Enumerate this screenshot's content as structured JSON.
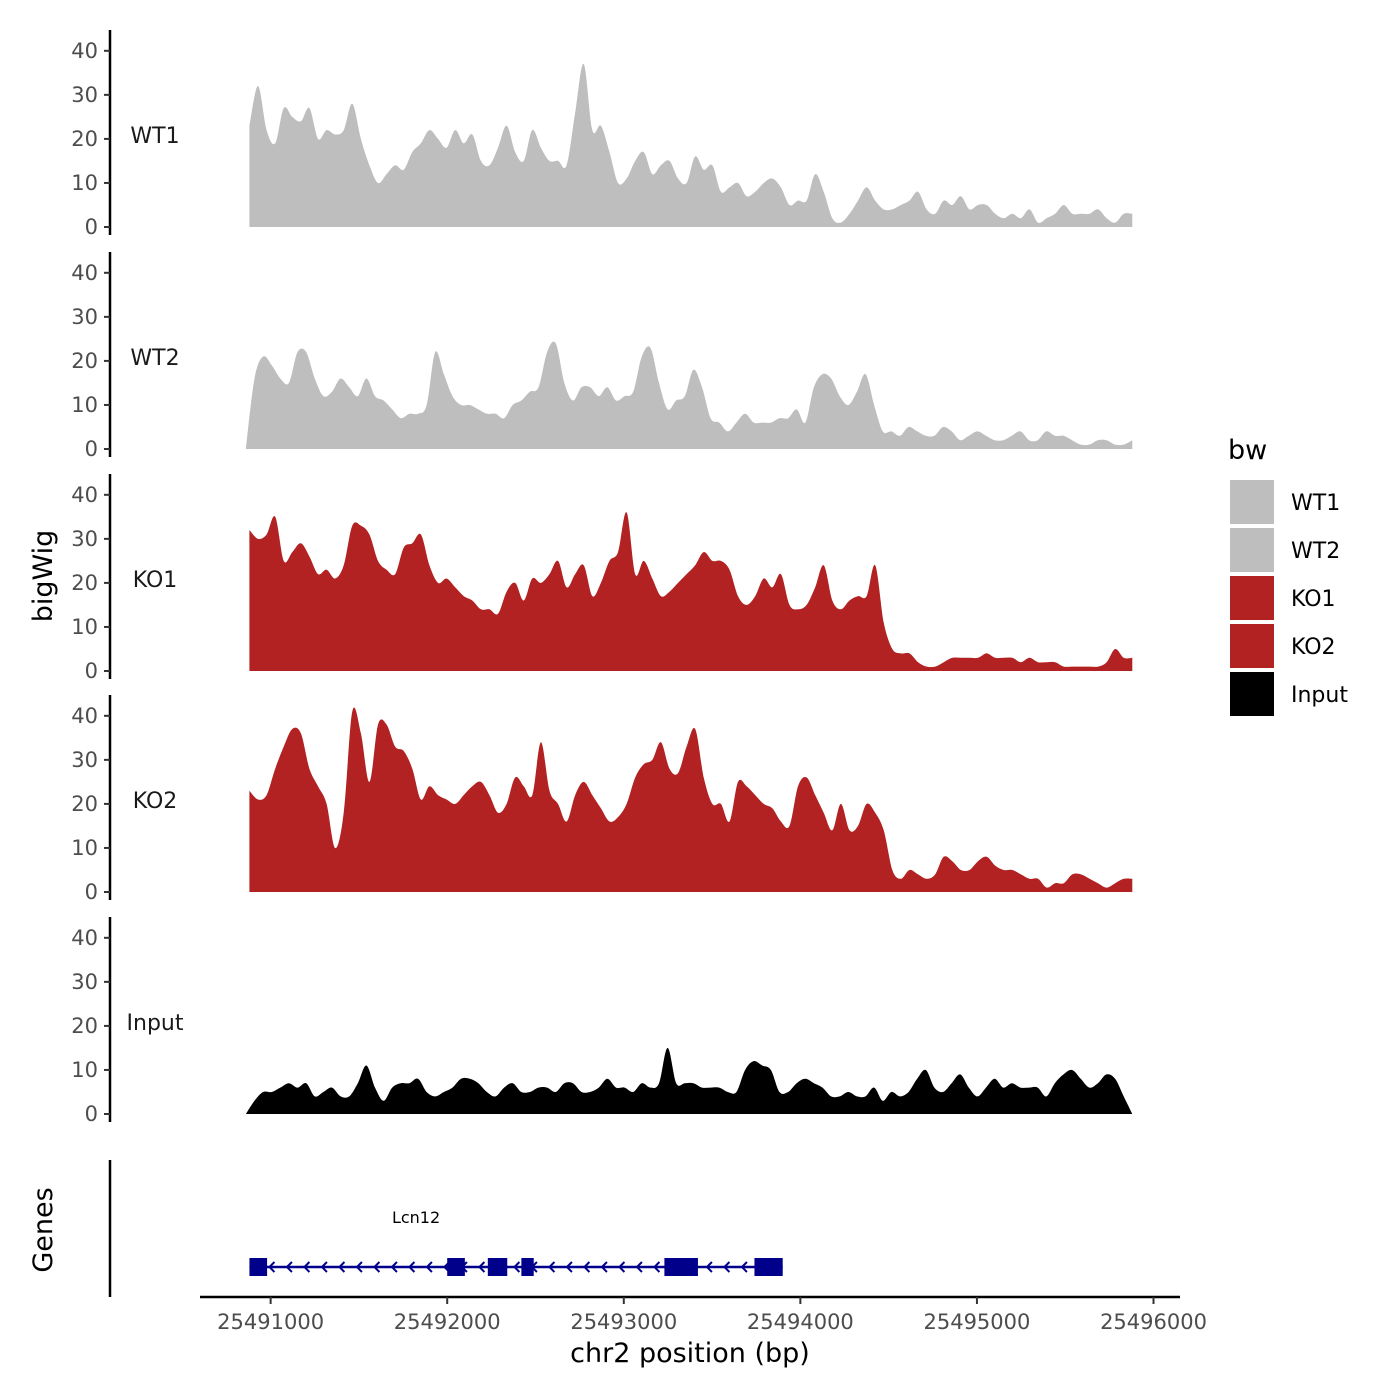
{
  "chart_data": {
    "type": "area",
    "title": "",
    "ylabel": "bigWig",
    "xlabel": "chr2 position (bp)",
    "genes_label": "Genes",
    "xlim": [
      25490600,
      25496150
    ],
    "ylim": [
      0,
      42
    ],
    "x_ticks": [
      25491000,
      25492000,
      25493000,
      25494000,
      25495000,
      25496000
    ],
    "x_tick_labels": [
      "25491000",
      "25492000",
      "25493000",
      "25494000",
      "25495000",
      "25496000"
    ],
    "y_ticks": [
      0,
      10,
      20,
      30,
      40
    ],
    "y_tick_labels": [
      "0",
      "10",
      "20",
      "30",
      "40"
    ],
    "legend": {
      "title": "bw",
      "position": "right",
      "items": [
        {
          "label": "WT1",
          "color": "#bebebe"
        },
        {
          "label": "WT2",
          "color": "#bebebe"
        },
        {
          "label": "KO1",
          "color": "#b22222"
        },
        {
          "label": "KO2",
          "color": "#b22222"
        },
        {
          "label": "Input",
          "color": "#000000"
        }
      ]
    },
    "series": [
      {
        "name": "WT1",
        "color": "#bebebe",
        "x_start": 25490880,
        "x_end": 25495880,
        "values": [
          23,
          32,
          22,
          19,
          27,
          25,
          24,
          27,
          20,
          22,
          21,
          22,
          28,
          20,
          14,
          10,
          12,
          14,
          13,
          17,
          19,
          22,
          20,
          18,
          22,
          19,
          21,
          15,
          14,
          18,
          23,
          17,
          15,
          22,
          18,
          15,
          15,
          14,
          26,
          37,
          22,
          23,
          17,
          10,
          11,
          15,
          17,
          12,
          14,
          15,
          11,
          10,
          16,
          13,
          14,
          8,
          9,
          10,
          7,
          8,
          10,
          11,
          9,
          5,
          6,
          6,
          12,
          8,
          2,
          1,
          3,
          6,
          9,
          6,
          4,
          4,
          5,
          6,
          8,
          4,
          3,
          6,
          5,
          7,
          4,
          5,
          5,
          3,
          2,
          3,
          2,
          4,
          1,
          2,
          3,
          5,
          3,
          3,
          3,
          4,
          2,
          1,
          3,
          3
        ]
      },
      {
        "name": "WT2",
        "color": "#bebebe",
        "x_start": 25490860,
        "x_end": 25495880,
        "values": [
          0,
          16,
          21,
          19,
          16,
          15,
          22,
          22,
          16,
          12,
          13,
          16,
          14,
          12,
          16,
          12,
          11,
          9,
          7,
          8,
          8,
          10,
          22,
          17,
          12,
          10,
          10,
          9,
          8,
          8,
          7,
          10,
          11,
          13,
          14,
          22,
          24,
          15,
          11,
          14,
          14,
          12,
          14,
          11,
          12,
          13,
          21,
          23,
          15,
          9,
          11,
          12,
          18,
          14,
          7,
          6,
          4,
          6,
          8,
          6,
          6,
          6,
          7,
          7,
          9,
          6,
          14,
          17,
          16,
          12,
          10,
          13,
          17,
          10,
          4,
          4,
          3,
          5,
          4,
          3,
          3,
          5,
          4,
          2,
          3,
          4,
          3,
          2,
          2,
          3,
          4,
          2,
          2,
          4,
          3,
          3,
          2,
          1,
          1,
          2,
          2,
          1,
          1,
          2
        ]
      },
      {
        "name": "KO1",
        "color": "#b22222",
        "x_start": 25490880,
        "x_end": 25495880,
        "values": [
          32,
          30,
          31,
          35,
          25,
          27,
          29,
          26,
          22,
          23,
          21,
          24,
          33,
          33,
          31,
          25,
          23,
          22,
          28,
          29,
          31,
          24,
          20,
          21,
          19,
          17,
          16,
          14,
          14,
          13,
          18,
          20,
          16,
          21,
          20,
          22,
          25,
          19,
          22,
          24,
          17,
          20,
          25,
          27,
          36,
          22,
          25,
          21,
          17,
          18,
          20,
          22,
          24,
          27,
          25,
          25,
          23,
          17,
          15,
          17,
          21,
          19,
          22,
          15,
          14,
          15,
          19,
          24,
          16,
          14,
          16,
          17,
          17,
          24,
          11,
          5,
          4,
          4,
          2,
          1,
          1,
          2,
          3,
          3,
          3,
          3,
          4,
          3,
          3,
          3,
          2,
          3,
          2,
          2,
          2,
          1,
          1,
          1,
          1,
          1,
          2,
          5,
          3,
          3
        ]
      },
      {
        "name": "KO2",
        "color": "#b22222",
        "x_start": 25490880,
        "x_end": 25495880,
        "values": [
          23,
          21,
          22,
          28,
          33,
          37,
          36,
          28,
          24,
          20,
          10,
          18,
          41,
          36,
          25,
          38,
          38,
          33,
          32,
          28,
          21,
          24,
          22,
          21,
          20,
          22,
          24,
          25,
          22,
          18,
          20,
          26,
          24,
          22,
          34,
          23,
          20,
          16,
          22,
          25,
          22,
          19,
          16,
          17,
          20,
          26,
          29,
          30,
          34,
          28,
          27,
          33,
          37,
          26,
          20,
          20,
          16,
          25,
          24,
          22,
          20,
          19,
          16,
          15,
          24,
          26,
          22,
          18,
          14,
          20,
          14,
          15,
          20,
          18,
          14,
          5,
          3,
          5,
          4,
          3,
          4,
          8,
          7,
          5,
          5,
          7,
          8,
          6,
          5,
          5,
          4,
          3,
          3,
          1,
          2,
          2,
          4,
          4,
          3,
          2,
          1,
          2,
          3,
          3
        ]
      },
      {
        "name": "Input",
        "color": "#000000",
        "x_start": 25490860,
        "x_end": 25495880,
        "values": [
          0,
          3,
          5,
          5,
          6,
          7,
          6,
          7,
          4,
          5,
          6,
          4,
          4,
          7,
          11,
          6,
          3,
          6,
          7,
          7,
          8,
          5,
          4,
          5,
          6,
          8,
          8,
          7,
          5,
          4,
          6,
          7,
          5,
          5,
          6,
          6,
          5,
          7,
          7,
          5,
          5,
          6,
          8,
          6,
          6,
          5,
          7,
          6,
          7,
          15,
          7,
          7,
          7,
          6,
          6,
          6,
          5,
          5,
          10,
          12,
          11,
          10,
          5,
          5,
          7,
          8,
          7,
          6,
          4,
          4,
          5,
          4,
          4,
          6,
          3,
          5,
          4,
          5,
          8,
          10,
          6,
          5,
          7,
          9,
          6,
          4,
          6,
          8,
          6,
          7,
          6,
          6,
          6,
          4,
          7,
          9,
          10,
          8,
          6,
          7,
          9,
          8,
          4,
          0
        ]
      }
    ],
    "gene": {
      "name": "Lcn12",
      "strand": "-",
      "color": "#00008b",
      "start": 25490880,
      "end": 25493900,
      "exons": [
        [
          25490880,
          25490980
        ],
        [
          25492000,
          25492100
        ],
        [
          25492230,
          25492340
        ],
        [
          25492420,
          25492490
        ],
        [
          25493230,
          25493420
        ],
        [
          25493740,
          25493900
        ]
      ]
    }
  }
}
